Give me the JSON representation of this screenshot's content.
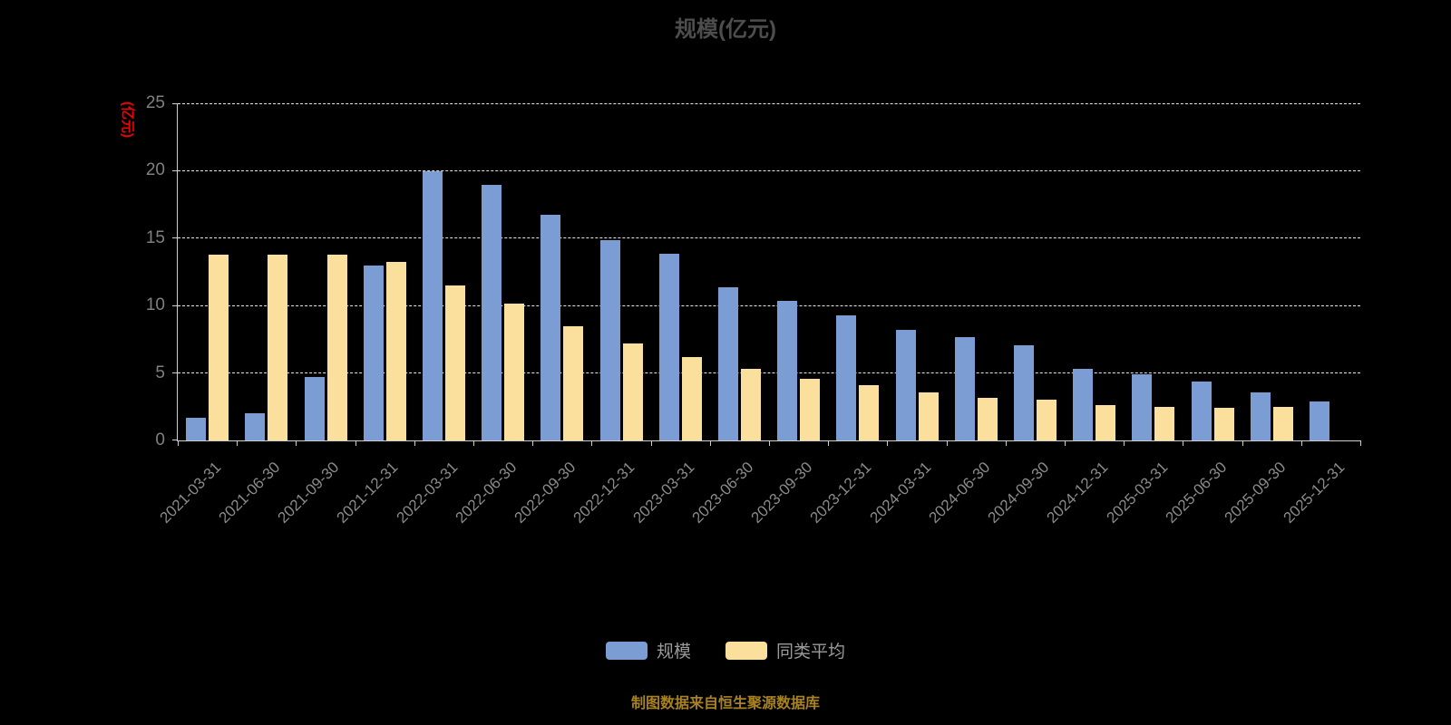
{
  "title": "规模(亿元)",
  "y_axis_name": "(亿元)",
  "footer": "制图数据来自恒生聚源数据库",
  "legend": [
    {
      "label": "规模",
      "color": "#7b9dd4"
    },
    {
      "label": "同类平均",
      "color": "#fbdf9c"
    }
  ],
  "chart_data": {
    "type": "bar",
    "title": "规模(亿元)",
    "xlabel": "",
    "ylabel": "(亿元)",
    "ylim": [
      0,
      25
    ],
    "yticks": [
      0,
      5,
      10,
      15,
      20,
      25
    ],
    "grid": true,
    "legend_position": "bottom",
    "categories": [
      "2021-03-31",
      "2021-06-30",
      "2021-09-30",
      "2021-12-31",
      "2022-03-31",
      "2022-06-30",
      "2022-09-30",
      "2022-12-31",
      "2023-03-31",
      "2023-06-30",
      "2023-09-30",
      "2023-12-31",
      "2024-03-31",
      "2024-06-30",
      "2024-09-30",
      "2024-12-31",
      "2025-03-31",
      "2025-06-30",
      "2025-09-30",
      "2025-12-31"
    ],
    "series": [
      {
        "name": "规模",
        "color": "#7b9dd4",
        "values": [
          1.7,
          2.0,
          4.7,
          13.0,
          20.0,
          19.0,
          16.8,
          14.9,
          13.9,
          11.4,
          10.4,
          9.3,
          8.2,
          7.7,
          7.1,
          5.3,
          4.9,
          4.4,
          3.6,
          2.9
        ]
      },
      {
        "name": "同类平均",
        "color": "#fbdf9c",
        "values": [
          13.8,
          13.8,
          13.8,
          13.3,
          11.5,
          10.2,
          8.5,
          7.2,
          6.2,
          5.3,
          4.6,
          4.1,
          3.6,
          3.2,
          3.0,
          2.6,
          2.5,
          2.4,
          2.5,
          0
        ]
      }
    ]
  }
}
